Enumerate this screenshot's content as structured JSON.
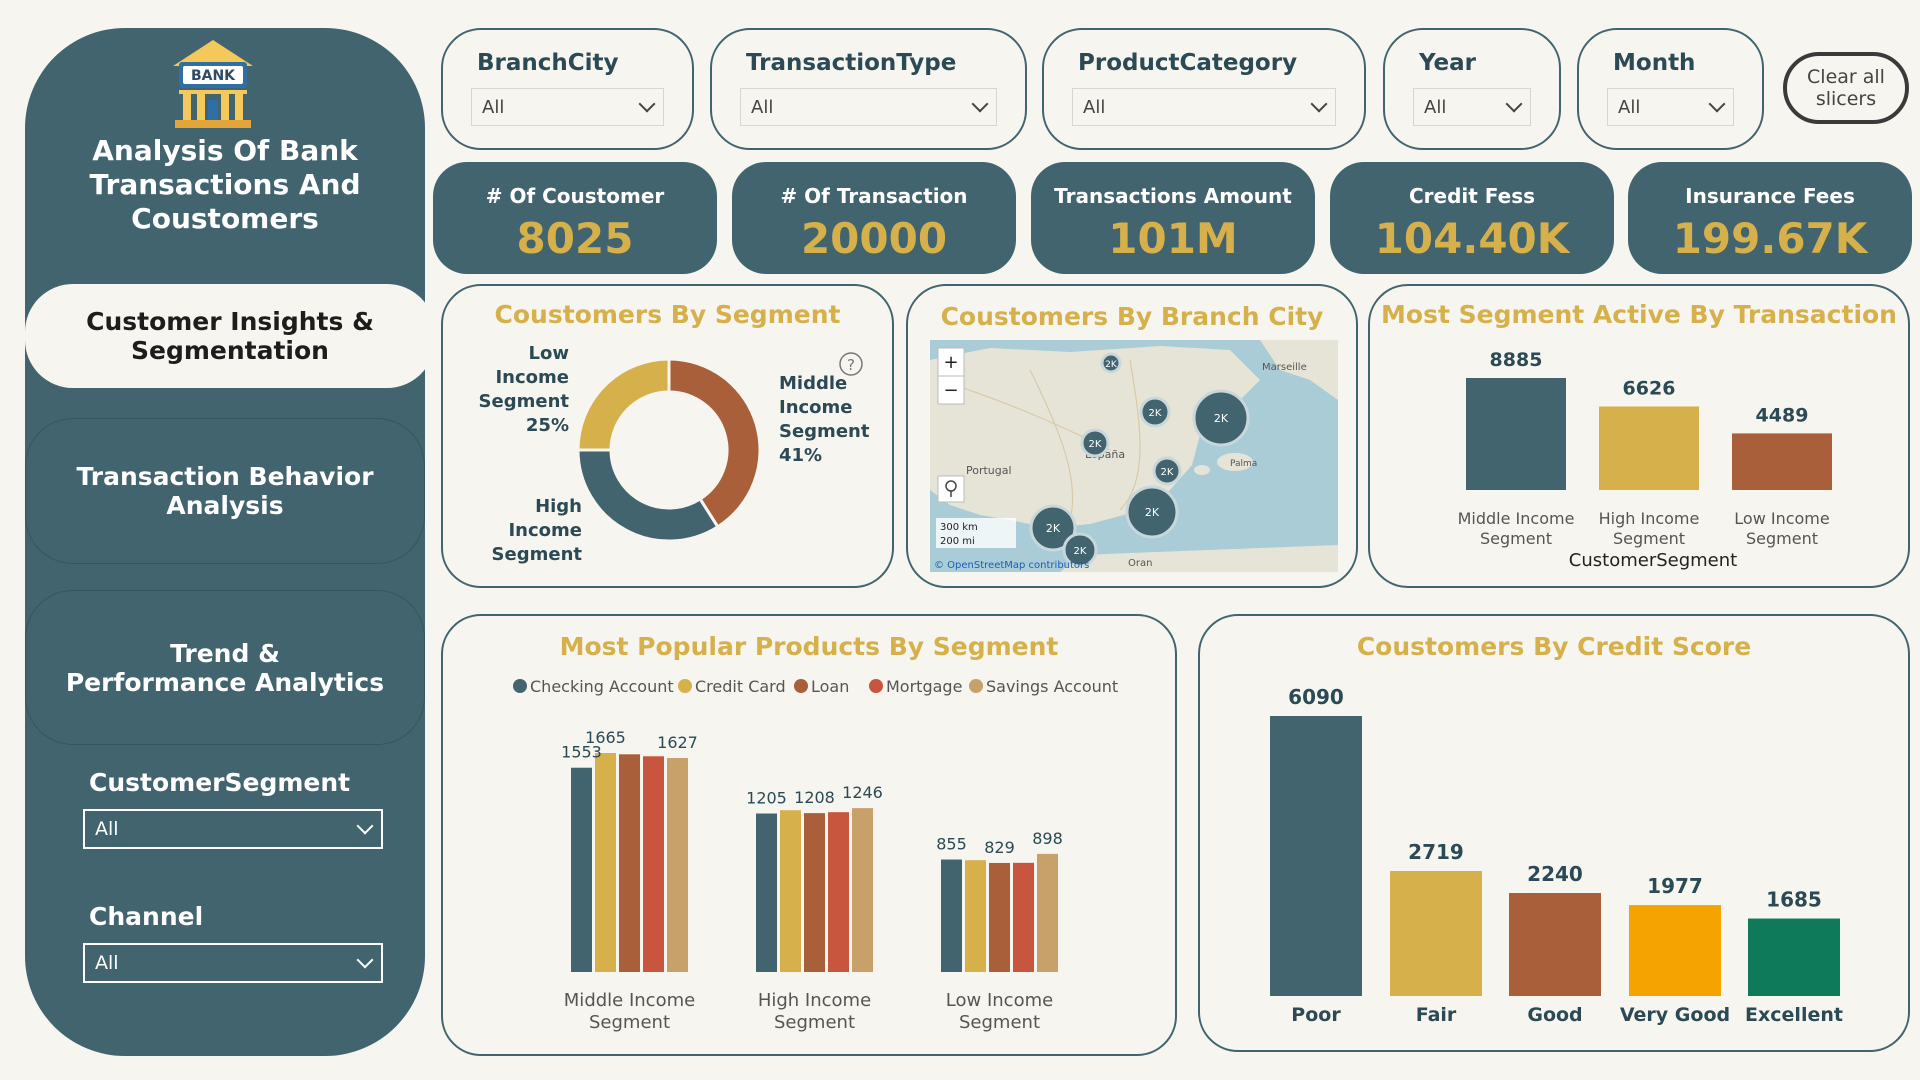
{
  "sidebar": {
    "logo_text": "BANK",
    "title_lines": [
      "Analysis Of Bank",
      "Transactions And",
      "Coustomers"
    ],
    "nav": [
      {
        "line1": "Customer Insights &",
        "line2": "Segmentation"
      },
      {
        "line1": "Transaction Behavior",
        "line2": "Analysis"
      },
      {
        "line1": "Trend &",
        "line2": "Performance Analytics"
      }
    ],
    "filters": [
      {
        "label": "CustomerSegment",
        "value": "All"
      },
      {
        "label": "Channel",
        "value": "All"
      }
    ]
  },
  "slicers": [
    {
      "label": "BranchCity",
      "value": "All"
    },
    {
      "label": "TransactionType",
      "value": "All"
    },
    {
      "label": "ProductCategory",
      "value": "All"
    },
    {
      "label": "Year",
      "value": "All"
    },
    {
      "label": "Month",
      "value": "All"
    }
  ],
  "clear_button": {
    "line1": "Clear all",
    "line2": "slicers"
  },
  "kpis": [
    {
      "label": "# Of Coustomer",
      "value": "8025"
    },
    {
      "label": "# Of Transaction",
      "value": "20000"
    },
    {
      "label": "Transactions Amount",
      "value": "101M"
    },
    {
      "label": "Credit Fess",
      "value": "104.40K"
    },
    {
      "label": "Insurance Fees",
      "value": "199.67K"
    }
  ],
  "titles": {
    "segment_donut": "Coustomers By Segment",
    "map": "Coustomers By Branch City",
    "segment_active": "Most Segment Active By Transaction",
    "products": "Most Popular Products By Segment",
    "credit": "Coustomers By Credit Score"
  },
  "map": {
    "zoom_in": "+",
    "zoom_out": "−",
    "scale_km": "300 km",
    "scale_mi": "200 mi",
    "attribution": "© OpenStreetMap contributors",
    "cluster_label": "2K",
    "place_labels": [
      "España",
      "Portugal",
      "Marseille",
      "Palma",
      "Oran"
    ]
  },
  "colors": {
    "teal": "#41646f",
    "gold": "#d6b04a",
    "rust": "#a95f3a",
    "red": "#c8553d",
    "tan": "#c8a06a",
    "orange": "#f5a300",
    "green": "#0e7a5a"
  },
  "chart_data": [
    {
      "type": "pie",
      "variant": "donut",
      "title": "Coustomers By Segment",
      "slices": [
        {
          "label": "Middle Income Segment",
          "percent": 41,
          "label_lines": [
            "Middle",
            "Income",
            "Segment",
            "41%"
          ]
        },
        {
          "label": "High Income Segment",
          "percent": 34,
          "label_lines": [
            "High",
            "Income",
            "Segment"
          ]
        },
        {
          "label": "Low Income Segment",
          "percent": 25,
          "label_lines": [
            "Low",
            "Income",
            "Segment",
            "25%"
          ]
        }
      ]
    },
    {
      "type": "bar",
      "title": "Most Segment Active By Transaction",
      "categories": [
        [
          "Middle Income",
          "Segment"
        ],
        [
          "High Income",
          "Segment"
        ],
        [
          "Low Income",
          "Segment"
        ]
      ],
      "values": [
        8885,
        6626,
        4489
      ],
      "xlabel": "CustomerSegment",
      "ylim": [
        0,
        10000
      ]
    },
    {
      "type": "bar",
      "title": "Most Popular Products By Segment",
      "legend_position": "top",
      "categories": [
        [
          "Middle Income",
          "Segment"
        ],
        [
          "High Income",
          "Segment"
        ],
        [
          "Low Income",
          "Segment"
        ]
      ],
      "ylim": [
        0,
        1800
      ],
      "series": [
        {
          "name": "Checking Account",
          "values": [
            1553,
            1205,
            855
          ]
        },
        {
          "name": "Credit Card",
          "values": [
            1665,
            1230,
            850
          ]
        },
        {
          "name": "Loan",
          "values": [
            1655,
            1208,
            829
          ]
        },
        {
          "name": "Mortgage",
          "values": [
            1640,
            1215,
            830
          ]
        },
        {
          "name": "Savings Account",
          "values": [
            1627,
            1246,
            898
          ]
        }
      ],
      "data_labels": [
        {
          "category": 0,
          "series": 0,
          "text": "1553"
        },
        {
          "category": 0,
          "series": 1,
          "text": "1665"
        },
        {
          "category": 0,
          "series": 4,
          "text": "1627"
        },
        {
          "category": 1,
          "series": 0,
          "text": "1205"
        },
        {
          "category": 1,
          "series": 2,
          "text": "1208"
        },
        {
          "category": 1,
          "series": 4,
          "text": "1246"
        },
        {
          "category": 2,
          "series": 0,
          "text": "855"
        },
        {
          "category": 2,
          "series": 2,
          "text": "829"
        },
        {
          "category": 2,
          "series": 4,
          "text": "898"
        }
      ]
    },
    {
      "type": "bar",
      "title": "Coustomers By Credit Score",
      "categories": [
        "Poor",
        "Fair",
        "Good",
        "Very Good",
        "Excellent"
      ],
      "values": [
        6090,
        2719,
        2240,
        1977,
        1685
      ],
      "ylim": [
        0,
        6090
      ]
    }
  ]
}
